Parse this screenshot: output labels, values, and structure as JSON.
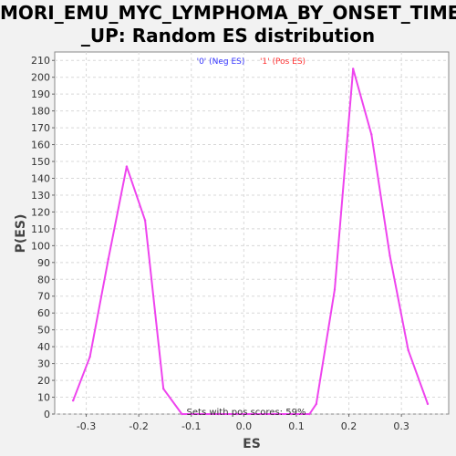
{
  "chart_data": {
    "type": "line",
    "title_lines": [
      "MORI_EMU_MYC_LYMPHOMA_BY_ONSET_TIME",
      "_UP: Random ES distribution"
    ],
    "xlabel": "ES",
    "ylabel": "P(ES)",
    "xlim": [
      -0.36,
      0.39
    ],
    "ylim": [
      0,
      215
    ],
    "xticks": [
      -0.3,
      -0.2,
      -0.1,
      0.0,
      0.1,
      0.2,
      0.3
    ],
    "xtick_labels": [
      "-0.3",
      "-0.2",
      "-0.1",
      "0.0",
      "0.1",
      "0.2",
      "0.3"
    ],
    "yticks": [
      0,
      10,
      20,
      30,
      40,
      50,
      60,
      70,
      80,
      90,
      100,
      110,
      120,
      130,
      140,
      150,
      160,
      170,
      180,
      190,
      200,
      210
    ],
    "grid": true,
    "legend": [
      {
        "label": "'0' (Neg ES)",
        "color": "#3333ff"
      },
      {
        "label": "'1' (Pos ES)",
        "color": "#ff3333"
      }
    ],
    "legend_position": "top",
    "annotation": "Sets with pos scores: 59%",
    "series": [
      {
        "color": "#ee44ee",
        "points": [
          [
            -0.325,
            8
          ],
          [
            -0.293,
            34
          ],
          [
            -0.258,
            92
          ],
          [
            -0.223,
            147
          ],
          [
            -0.188,
            115
          ],
          [
            -0.153,
            15
          ],
          [
            -0.118,
            0
          ],
          [
            -0.083,
            0
          ],
          [
            -0.048,
            0
          ],
          [
            -0.013,
            0
          ],
          [
            0.02,
            0
          ],
          [
            0.055,
            0
          ],
          [
            0.09,
            0
          ],
          [
            0.125,
            0
          ],
          [
            0.138,
            6
          ],
          [
            0.173,
            74
          ],
          [
            0.208,
            205
          ],
          [
            0.243,
            166
          ],
          [
            0.278,
            94
          ],
          [
            0.313,
            38
          ],
          [
            0.35,
            6
          ]
        ]
      }
    ]
  }
}
